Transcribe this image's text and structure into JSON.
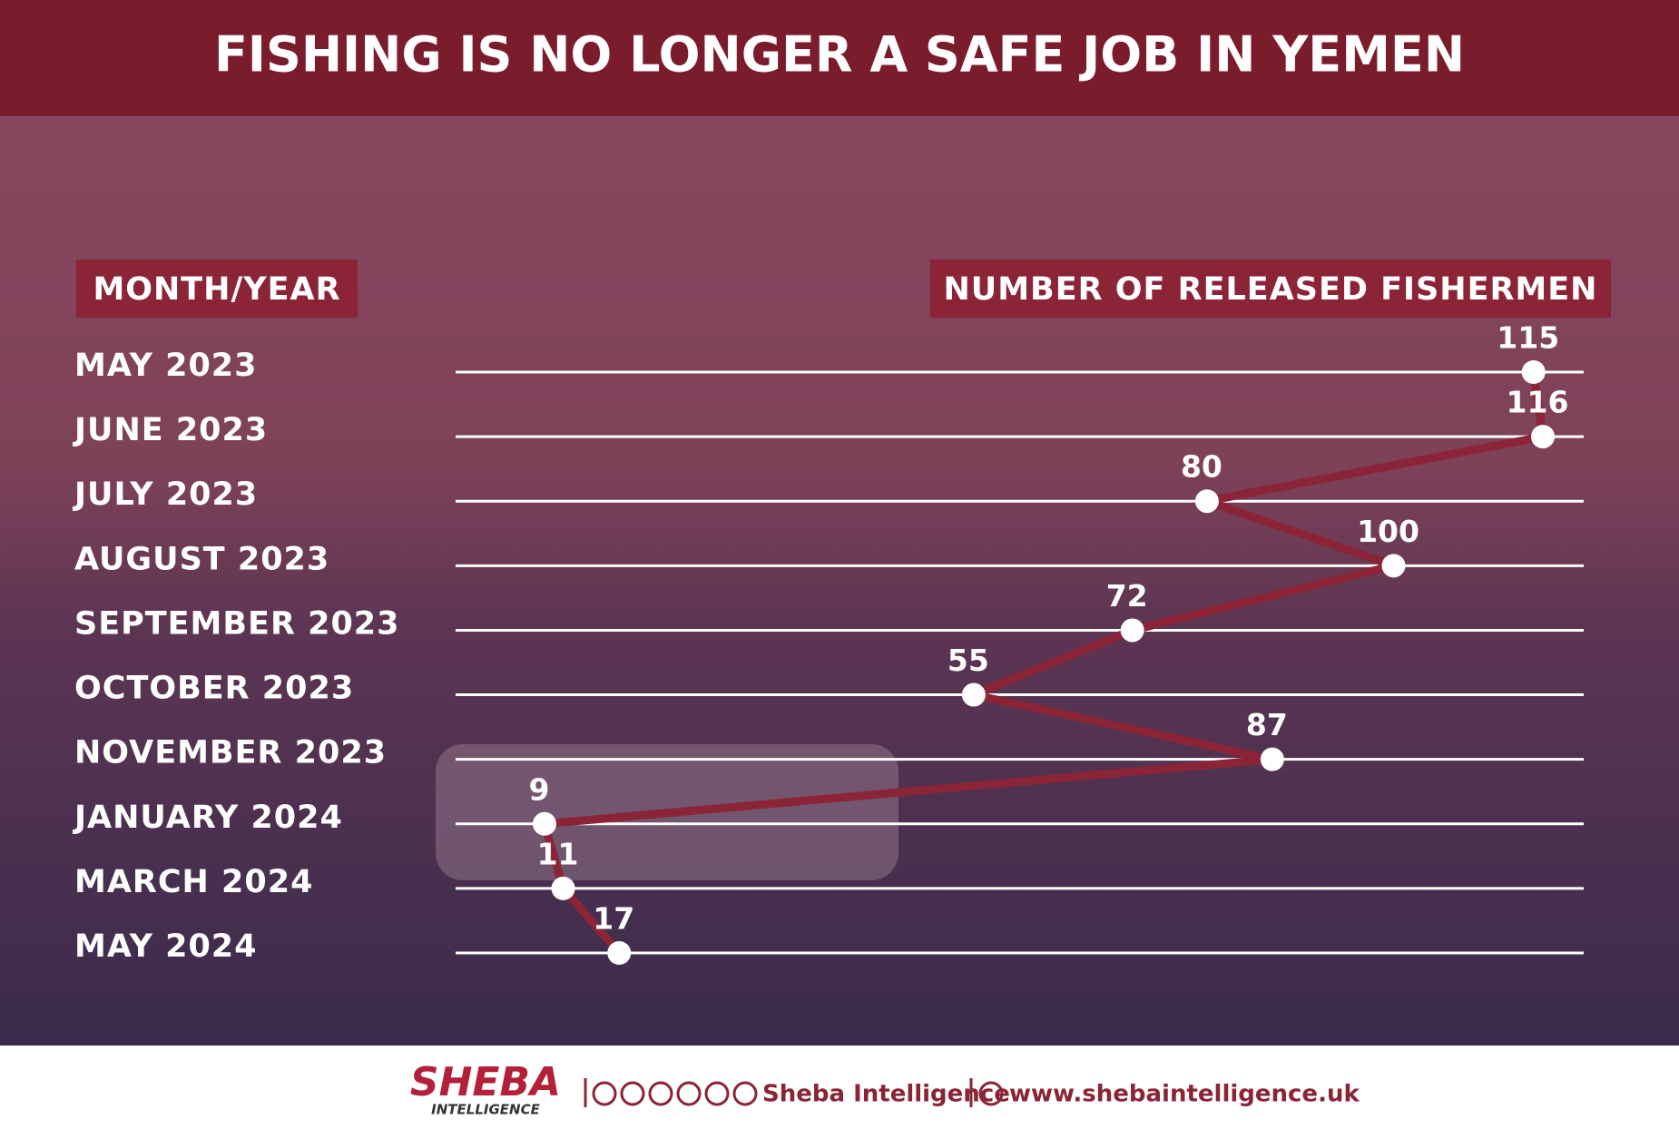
{
  "chart_data": {
    "type": "line",
    "title": "FISHING IS NO LONGER A SAFE JOB IN YEMEN",
    "category_header": "MONTH/YEAR",
    "value_header": "NUMBER OF RELEASED FISHERMEN",
    "categories": [
      "MAY 2023",
      "JUNE 2023",
      "JULY 2023",
      "AUGUST 2023",
      "SEPTEMBER 2023",
      "OCTOBER 2023",
      "NOVEMBER 2023",
      "JANUARY 2024",
      "MARCH 2024",
      "MAY 2024"
    ],
    "values": [
      115,
      116,
      80,
      100,
      72,
      55,
      87,
      9,
      11,
      17
    ],
    "color": "#8a2436"
  },
  "footer": {
    "brand": "SHEBA",
    "brand_sub": "INTELLIGENCE",
    "social": "Sheba Intelligence",
    "website": "www.shebaintelligence.uk"
  }
}
